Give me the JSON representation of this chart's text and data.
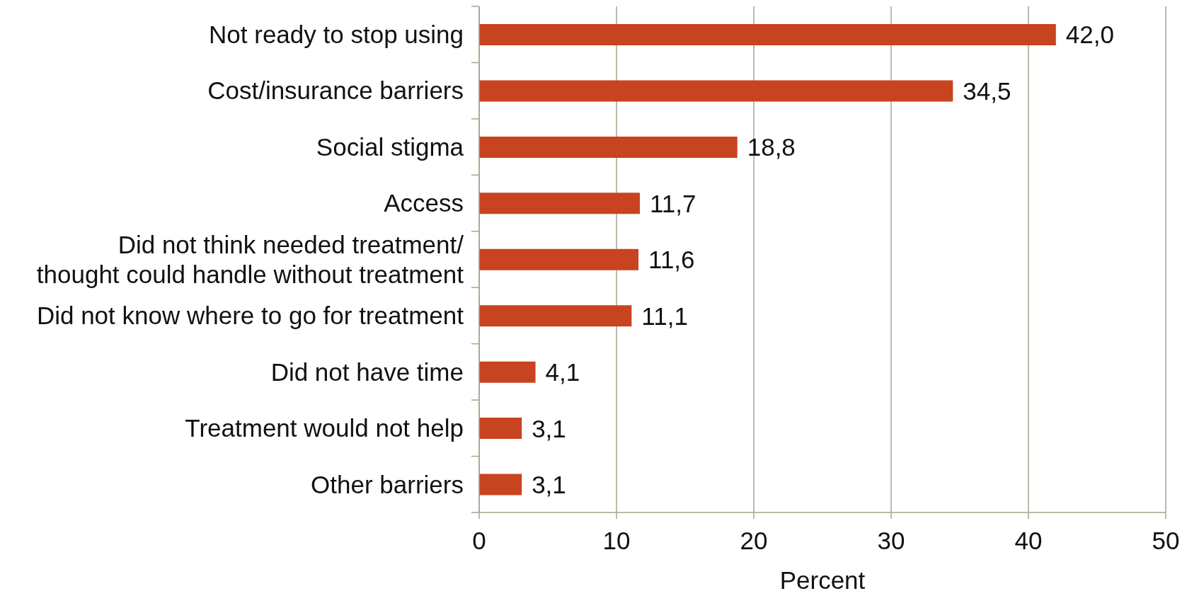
{
  "chart_data": {
    "type": "bar",
    "orientation": "horizontal",
    "categories": [
      "Not ready to stop using",
      "Cost/insurance barriers",
      "Social stigma",
      "Access",
      "Did not think needed treatment/\nthought could handle without treatment",
      "Did not know where to go for treatment",
      "Did not have time",
      "Treatment would not help",
      "Other barriers"
    ],
    "values": [
      42.0,
      34.5,
      18.8,
      11.7,
      11.6,
      11.1,
      4.1,
      3.1,
      3.1
    ],
    "value_labels": [
      "42,0",
      "34,5",
      "18,8",
      "11,7",
      "11,6",
      "11,1",
      "4,1",
      "3,1",
      "3,1"
    ],
    "color": "#c8431f",
    "xlim": [
      0,
      50
    ],
    "xticks": [
      0,
      10,
      20,
      30,
      40,
      50
    ],
    "xlabel": "Percent",
    "grid": "x"
  }
}
